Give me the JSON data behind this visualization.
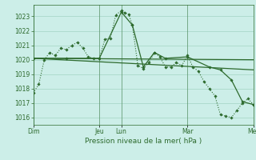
{
  "bg_color": "#cceee8",
  "grid_color": "#99ccbb",
  "line_color": "#2d6a2d",
  "marker_color": "#2d6a2d",
  "xlabel": "Pression niveau de la mer( hPa )",
  "ylim": [
    1015.5,
    1023.8
  ],
  "yticks": [
    1016,
    1017,
    1018,
    1019,
    1020,
    1021,
    1022,
    1023
  ],
  "day_labels": [
    "Dim",
    "Jeu",
    "Lun",
    "Mar",
    "Mer"
  ],
  "day_positions": [
    0.0,
    0.3,
    0.4,
    0.7,
    1.0
  ],
  "series": [
    {
      "style": "dotted",
      "marker": "D",
      "markersize": 1.8,
      "linewidth": 0.8,
      "points": [
        [
          0.0,
          1017.7
        ],
        [
          0.025,
          1018.3
        ],
        [
          0.05,
          1020.0
        ],
        [
          0.075,
          1020.5
        ],
        [
          0.1,
          1020.3
        ],
        [
          0.125,
          1020.8
        ],
        [
          0.15,
          1020.7
        ],
        [
          0.175,
          1021.0
        ],
        [
          0.2,
          1021.2
        ],
        [
          0.225,
          1020.8
        ],
        [
          0.25,
          1020.2
        ],
        [
          0.275,
          1020.1
        ],
        [
          0.3,
          1020.1
        ],
        [
          0.325,
          1021.4
        ],
        [
          0.35,
          1021.5
        ],
        [
          0.375,
          1023.1
        ],
        [
          0.4,
          1023.4
        ],
        [
          0.417,
          1023.25
        ],
        [
          0.433,
          1023.15
        ],
        [
          0.45,
          1022.4
        ],
        [
          0.475,
          1019.6
        ],
        [
          0.5,
          1019.4
        ],
        [
          0.525,
          1019.8
        ],
        [
          0.55,
          1020.5
        ],
        [
          0.575,
          1020.2
        ],
        [
          0.6,
          1019.5
        ],
        [
          0.625,
          1019.5
        ],
        [
          0.65,
          1019.8
        ],
        [
          0.675,
          1019.6
        ],
        [
          0.7,
          1020.3
        ],
        [
          0.725,
          1019.5
        ],
        [
          0.75,
          1019.2
        ],
        [
          0.775,
          1018.5
        ],
        [
          0.8,
          1018.0
        ],
        [
          0.825,
          1017.5
        ],
        [
          0.85,
          1016.2
        ],
        [
          0.875,
          1016.1
        ],
        [
          0.9,
          1016.0
        ],
        [
          0.925,
          1016.5
        ],
        [
          0.95,
          1017.0
        ],
        [
          0.975,
          1017.3
        ],
        [
          1.0,
          1016.9
        ]
      ]
    },
    {
      "style": "solid",
      "marker": null,
      "markersize": 0,
      "linewidth": 0.9,
      "points": [
        [
          0.0,
          1020.1
        ],
        [
          1.0,
          1020.0
        ]
      ]
    },
    {
      "style": "solid",
      "marker": null,
      "markersize": 0,
      "linewidth": 0.9,
      "points": [
        [
          0.0,
          1020.1
        ],
        [
          1.0,
          1019.3
        ]
      ]
    },
    {
      "style": "solid",
      "marker": "D",
      "markersize": 1.8,
      "linewidth": 0.9,
      "points": [
        [
          0.0,
          1020.1
        ],
        [
          0.15,
          1020.1
        ],
        [
          0.3,
          1020.1
        ],
        [
          0.4,
          1023.3
        ],
        [
          0.45,
          1022.4
        ],
        [
          0.5,
          1019.5
        ],
        [
          0.55,
          1020.5
        ],
        [
          0.6,
          1020.1
        ],
        [
          0.7,
          1020.2
        ],
        [
          0.8,
          1019.5
        ],
        [
          0.85,
          1019.3
        ],
        [
          0.9,
          1018.6
        ],
        [
          0.95,
          1017.1
        ],
        [
          1.0,
          1016.9
        ]
      ]
    }
  ]
}
